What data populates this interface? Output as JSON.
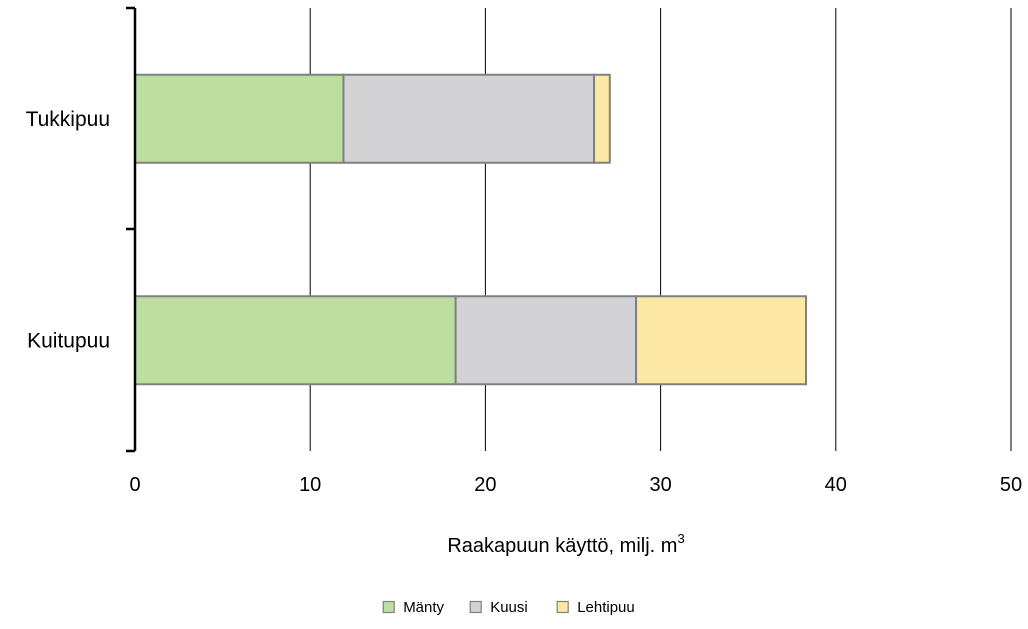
{
  "chart_data": {
    "type": "bar",
    "orientation": "horizontal",
    "stacked": true,
    "categories": [
      "Tukkipuu",
      "Kuitupuu"
    ],
    "series": [
      {
        "name": "Mänty",
        "values": [
          11.9,
          18.3
        ],
        "color": "#bcdfa0"
      },
      {
        "name": "Kuusi",
        "values": [
          14.3,
          10.3
        ],
        "color": "#d3d3d6"
      },
      {
        "name": "Lehtipuu",
        "values": [
          0.9,
          9.7
        ],
        "color": "#fde7a4"
      }
    ],
    "xlabel": "Raakapuun käyttö, milj. m",
    "xlabel_superscript": "3",
    "xlim": [
      0,
      50
    ],
    "xticks": [
      0,
      10,
      20,
      30,
      40,
      50
    ],
    "grid": true,
    "legend_position": "bottom"
  }
}
